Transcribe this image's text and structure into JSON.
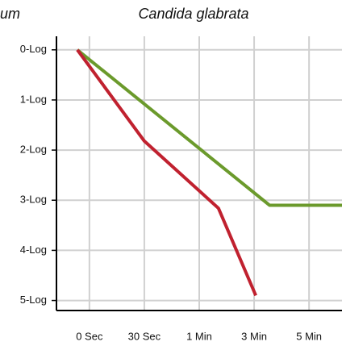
{
  "chart_data": {
    "type": "line",
    "title": "Candida glabrata",
    "annotations": [
      "um"
    ],
    "x_tick_positions_note_free": null,
    "xlim": [
      -0.6,
      4.6
    ],
    "xticks": [
      {
        "value": 0,
        "label": "0 Sec"
      },
      {
        "value": 1,
        "label": "30 Sec"
      },
      {
        "value": 2,
        "label": "1 Min"
      },
      {
        "value": 3,
        "label": "3 Min"
      },
      {
        "value": 4,
        "label": "5 Min"
      }
    ],
    "ylim": [
      -0.27,
      5.2
    ],
    "y_inverted": true,
    "yticks": [
      {
        "value": 0,
        "label": "0-Log"
      },
      {
        "value": 1,
        "label": "1-Log"
      },
      {
        "value": 2,
        "label": "2-Log"
      },
      {
        "value": 3,
        "label": "3-Log"
      },
      {
        "value": 4,
        "label": "4-Log"
      },
      {
        "value": 5,
        "label": "5-Log"
      }
    ],
    "grid": true,
    "series": [
      {
        "color": "#6b9a2c",
        "x": [
          -0.22,
          3.28,
          4.6
        ],
        "values": [
          0,
          3.1,
          3.1
        ]
      },
      {
        "color": "#c0212f",
        "x": [
          -0.22,
          1.0,
          2.35,
          3.03
        ],
        "values": [
          0,
          1.82,
          3.16,
          4.9
        ]
      }
    ]
  }
}
